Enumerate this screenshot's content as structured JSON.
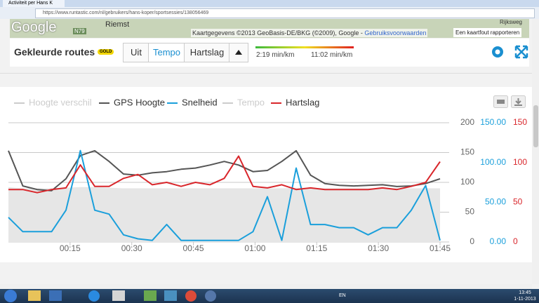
{
  "browser": {
    "tab_title": "Activiteit per Hans K",
    "url": "https://www.runtastic.com/nl/gebruikers/hans-koper/sportsessies/138056469"
  },
  "map": {
    "logo": "Google",
    "place": "Riemst",
    "road": "N79",
    "street": "Rijksweg",
    "attribution": "Kaartgegevens ©2013 GeoBasis-DE/BKG (©2009), Google -",
    "terms": "Gebruiksvoorwaarden",
    "report": "Een kaartfout rapporteren"
  },
  "toolbar": {
    "title": "Gekleurde routes",
    "badge": "GOLD",
    "buttons": [
      "Uit",
      "Tempo",
      "Hartslag"
    ],
    "scale_min": "2:19 min/km",
    "scale_max": "11:02 min/km"
  },
  "taskbar": {
    "language": "EN",
    "time": "13:45",
    "date": "1-11-2013"
  },
  "chart_data": {
    "type": "line",
    "x": [
      0,
      3.5,
      7,
      10.5,
      14,
      17.5,
      21,
      24.5,
      28,
      31.5,
      35,
      38.5,
      42,
      45.5,
      49,
      52.5,
      56,
      59.5,
      63,
      66.5,
      70,
      73.5,
      77,
      80.5,
      84,
      87.5,
      91,
      94.5,
      98,
      101.5,
      105
    ],
    "xlim": [
      0,
      105
    ],
    "xticks": [
      {
        "value": 15,
        "label": "00:15"
      },
      {
        "value": 30,
        "label": "00:30"
      },
      {
        "value": 45,
        "label": "00:45"
      },
      {
        "value": 60,
        "label": "01:00"
      },
      {
        "value": 75,
        "label": "01:15"
      },
      {
        "value": 90,
        "label": "01:30"
      },
      {
        "value": 105,
        "label": "01:45"
      }
    ],
    "ylim": [
      0,
      200
    ],
    "yticks": [
      0,
      50,
      100,
      150,
      200
    ],
    "y2lim": [
      0,
      150
    ],
    "y2ticks": [
      {
        "value": 0,
        "label": "0.00"
      },
      {
        "value": 50,
        "label": "50.00"
      },
      {
        "value": 100,
        "label": "100.00"
      },
      {
        "value": 150,
        "label": "150.00"
      }
    ],
    "y2color": "#1a9fdb",
    "y3lim": [
      0,
      150
    ],
    "y3ticks": [
      0,
      50,
      100,
      150
    ],
    "y3color": "#d9262b",
    "grid": true,
    "series": [
      {
        "name": "Hoogte verschil",
        "kind": "area",
        "color": "#cccccc",
        "values": [
          92,
          90,
          90,
          90,
          91,
          92,
          92,
          91,
          90,
          90,
          90,
          90,
          90,
          90,
          90,
          90,
          90,
          90,
          90,
          90,
          91,
          91,
          90,
          90,
          90,
          90,
          90,
          90,
          90,
          90,
          90
        ]
      },
      {
        "name": "GPS Hoogte",
        "color": "#555555",
        "values": [
          153,
          94,
          88,
          86,
          106,
          145,
          153,
          135,
          114,
          112,
          116,
          118,
          122,
          124,
          129,
          135,
          129,
          118,
          120,
          135,
          153,
          112,
          98,
          95,
          94,
          95,
          96,
          93,
          94,
          98,
          106
        ]
      },
      {
        "name": "Snelheid",
        "color": "#1a9fdb",
        "axis": "y2",
        "values": [
          31,
          13,
          13,
          13,
          40,
          115,
          40,
          35,
          9,
          4,
          2,
          22,
          2,
          2,
          2,
          2,
          2,
          13,
          57,
          2,
          93,
          22,
          22,
          18,
          18,
          9,
          18,
          18,
          40,
          71,
          2
        ]
      },
      {
        "name": "Tempo",
        "color": "#cccccc",
        "visible": false
      },
      {
        "name": "Hartslag",
        "color": "#d9262b",
        "axis": "y3",
        "values": [
          66,
          66,
          62,
          66,
          68,
          97,
          70,
          70,
          80,
          85,
          72,
          75,
          70,
          75,
          72,
          80,
          108,
          70,
          68,
          72,
          66,
          68,
          66,
          66,
          66,
          66,
          68,
          66,
          70,
          75,
          101
        ]
      }
    ]
  }
}
